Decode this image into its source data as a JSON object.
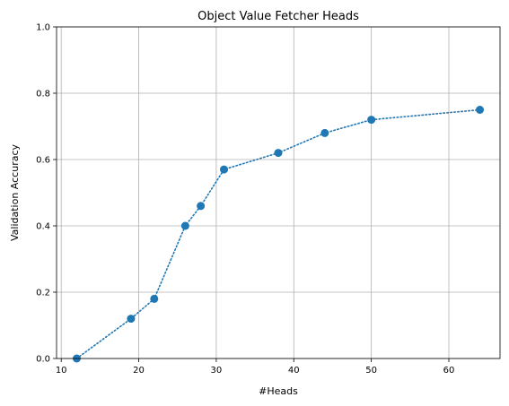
{
  "chart_data": {
    "type": "line",
    "title": "Object Value Fetcher Heads",
    "xlabel": "#Heads",
    "ylabel": "Validation Accuracy",
    "xlim": [
      9.4,
      66.6
    ],
    "ylim": [
      0,
      1.0
    ],
    "x_ticks": [
      10,
      20,
      30,
      40,
      50,
      60
    ],
    "y_ticks": [
      0.0,
      0.2,
      0.4,
      0.6,
      0.8,
      1.0
    ],
    "x_tick_labels": [
      "10",
      "20",
      "30",
      "40",
      "50",
      "60"
    ],
    "y_tick_labels": [
      "0.0",
      "0.2",
      "0.4",
      "0.6",
      "0.8",
      "1.0"
    ],
    "grid": true,
    "line_style": "dotted",
    "marker": "circle",
    "color": "#1f77b4",
    "series": [
      {
        "x": [
          12,
          19,
          22,
          26,
          28,
          31,
          38,
          44,
          50,
          64
        ],
        "y": [
          0.0,
          0.12,
          0.18,
          0.4,
          0.46,
          0.57,
          0.62,
          0.68,
          0.72,
          0.75
        ]
      }
    ]
  }
}
